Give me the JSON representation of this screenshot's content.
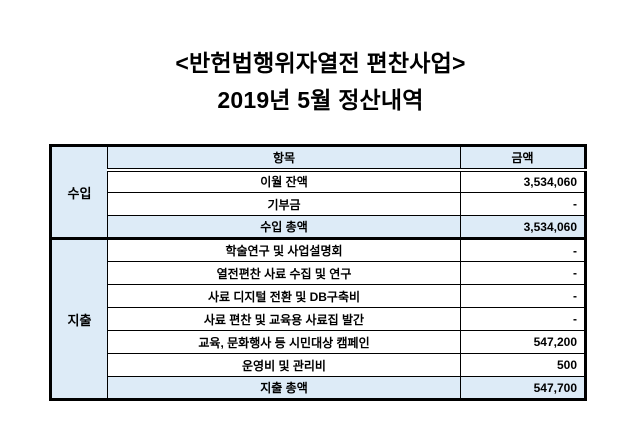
{
  "title": {
    "line1": "<반헌법행위자열전 편찬사업>",
    "line2": "2019년 5월 정산내역"
  },
  "table": {
    "headers": {
      "item": "항목",
      "amount": "금액"
    },
    "groups": [
      {
        "name": "수입",
        "rows": [
          {
            "item": "이월 잔액",
            "amount": "3,534,060"
          },
          {
            "item": "기부금",
            "amount": "-"
          },
          {
            "item": "수입 총액",
            "amount": "3,534,060"
          }
        ]
      },
      {
        "name": "지출",
        "rows": [
          {
            "item": "학술연구 및 사업설명회",
            "amount": "-"
          },
          {
            "item": "열전편찬 사료 수집 및 연구",
            "amount": "-"
          },
          {
            "item": "사료 디지털 전환 및 DB구축비",
            "amount": "-"
          },
          {
            "item": "사료 편찬 및 교육용 사료집 발간",
            "amount": "-"
          },
          {
            "item": "교육, 문화행사 등 시민대상 캠페인",
            "amount": "547,200"
          },
          {
            "item": "운영비 및 관리비",
            "amount": "500"
          },
          {
            "item": "지출 총액",
            "amount": "547,700"
          }
        ]
      }
    ]
  },
  "colors": {
    "highlight": "#DDEBF7",
    "border": "#000000",
    "text": "#000000",
    "background": "#FFFFFF"
  }
}
